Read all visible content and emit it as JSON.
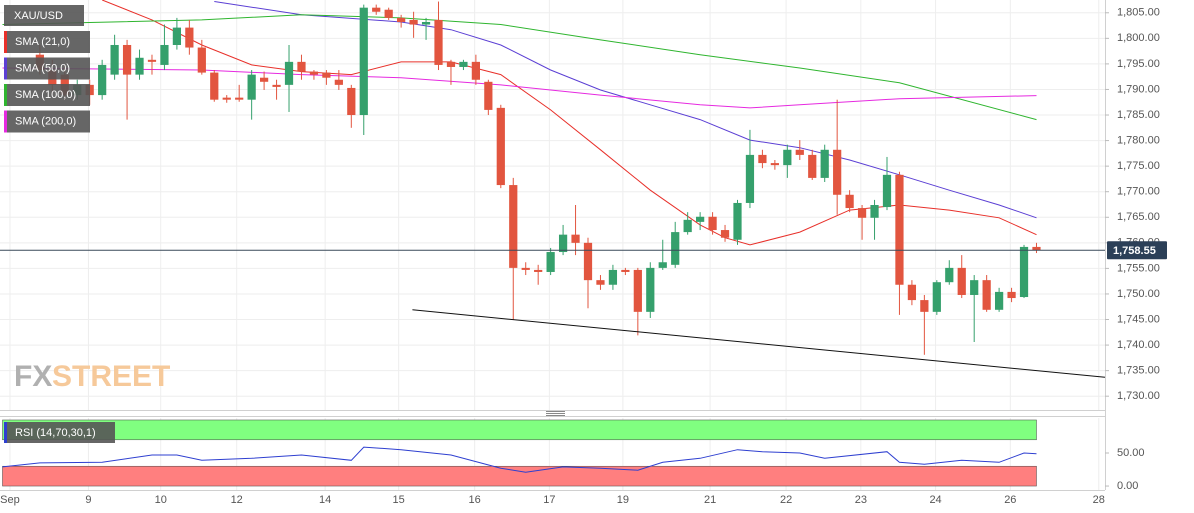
{
  "chart_data": [
    {
      "type": "candlestick",
      "symbol": "XAU/USD",
      "x": [
        3,
        4,
        5,
        6,
        7,
        8,
        9,
        10,
        11,
        12,
        13,
        14,
        15,
        16,
        17,
        18,
        19,
        20,
        21,
        22,
        23,
        24,
        25,
        26,
        27,
        28,
        29,
        30,
        31,
        32,
        33,
        34,
        35,
        36,
        37,
        38,
        39,
        40,
        41,
        42,
        43,
        44,
        45,
        46,
        47,
        48,
        49,
        50,
        51,
        52,
        53,
        54,
        55,
        56,
        57,
        58,
        59,
        60,
        61,
        62,
        63,
        64,
        65,
        66,
        67,
        68,
        69,
        70,
        71,
        72,
        73,
        74,
        75,
        76,
        77,
        78,
        79,
        80,
        81,
        82,
        83
      ],
      "open": [
        1796.8,
        1793.8,
        1792.9,
        1788.9,
        1790.9,
        1788.9,
        1792.9,
        1798.7,
        1792.9,
        1795.8,
        1794.8,
        1798.7,
        1802.1,
        1798.2,
        1793.3,
        1788.4,
        1788.4,
        1788.0,
        1792.3,
        1790.9,
        1790.9,
        1795.4,
        1793.5,
        1793.3,
        1791.9,
        1790.3,
        1785.0,
        1806.0,
        1805.6,
        1804.0,
        1803.6,
        1802.7,
        1803.6,
        1795.4,
        1794.4,
        1795.4,
        1791.5,
        1786.4,
        1771.3,
        1755.1,
        1754.7,
        1754.3,
        1758.2,
        1761.6,
        1760.0,
        1752.7,
        1751.8,
        1754.7,
        1754.7,
        1746.5,
        1755.1,
        1755.7,
        1762.1,
        1764.1,
        1765.1,
        1762.5,
        1760.6,
        1767.8,
        1777.2,
        1775.6,
        1775.2,
        1778.2,
        1777.2,
        1772.7,
        1778.2,
        1769.4,
        1766.8,
        1764.9,
        1767.0,
        1773.3,
        1751.8,
        1748.8,
        1746.5,
        1752.3,
        1755.1,
        1749.8,
        1752.7,
        1746.9,
        1750.4,
        1749.4,
        1759.2
      ],
      "high": [
        1798.7,
        1795.8,
        1794.8,
        1791.9,
        1791.9,
        1795.8,
        1800.7,
        1799.7,
        1797.8,
        1796.8,
        1802.7,
        1804.0,
        1803.6,
        1799.7,
        1793.8,
        1788.9,
        1790.9,
        1793.8,
        1793.5,
        1791.9,
        1798.7,
        1796.8,
        1793.8,
        1793.8,
        1793.8,
        1790.9,
        1806.6,
        1806.6,
        1806.0,
        1804.6,
        1805.2,
        1804.0,
        1807.2,
        1795.8,
        1795.8,
        1796.8,
        1791.9,
        1787.0,
        1772.7,
        1756.2,
        1755.7,
        1759.0,
        1763.5,
        1767.4,
        1761.0,
        1753.7,
        1755.7,
        1755.1,
        1755.1,
        1756.2,
        1760.6,
        1764.1,
        1766.0,
        1766.0,
        1766.0,
        1763.5,
        1768.4,
        1782.1,
        1778.2,
        1776.2,
        1779.2,
        1780.1,
        1778.2,
        1779.2,
        1788.0,
        1770.3,
        1767.4,
        1768.4,
        1776.8,
        1773.9,
        1752.7,
        1749.8,
        1752.7,
        1756.6,
        1757.6,
        1753.7,
        1753.7,
        1751.2,
        1751.2,
        1759.6,
        1760.0
      ],
      "low": [
        1792.9,
        1788.9,
        1788.0,
        1788.0,
        1787.0,
        1788.0,
        1791.9,
        1784.1,
        1791.9,
        1792.9,
        1793.8,
        1797.8,
        1796.8,
        1792.9,
        1787.6,
        1787.4,
        1787.6,
        1784.1,
        1789.9,
        1788.0,
        1785.6,
        1791.9,
        1791.9,
        1790.9,
        1789.9,
        1782.5,
        1781.1,
        1804.6,
        1803.6,
        1802.1,
        1800.1,
        1799.7,
        1793.8,
        1790.9,
        1793.8,
        1790.9,
        1785.0,
        1770.7,
        1744.9,
        1753.7,
        1751.8,
        1753.7,
        1757.6,
        1757.6,
        1747.2,
        1750.8,
        1750.8,
        1753.7,
        1741.9,
        1745.3,
        1754.7,
        1755.1,
        1761.6,
        1762.5,
        1761.6,
        1760.2,
        1759.6,
        1766.8,
        1774.6,
        1774.3,
        1772.7,
        1776.2,
        1772.3,
        1771.9,
        1765.5,
        1766.0,
        1760.6,
        1760.6,
        1766.4,
        1745.9,
        1747.8,
        1738.1,
        1745.9,
        1751.8,
        1749.2,
        1740.6,
        1746.5,
        1746.5,
        1748.4,
        1749.2,
        1758.0
      ],
      "close": [
        1793.8,
        1790.9,
        1788.9,
        1790.9,
        1788.9,
        1794.8,
        1798.7,
        1792.9,
        1796.2,
        1795.4,
        1798.7,
        1802.1,
        1798.2,
        1793.3,
        1788.0,
        1788.0,
        1788.0,
        1792.9,
        1791.5,
        1790.5,
        1795.4,
        1793.5,
        1792.9,
        1792.3,
        1790.9,
        1785.0,
        1806.0,
        1805.2,
        1804.0,
        1803.2,
        1802.7,
        1803.2,
        1794.8,
        1794.4,
        1795.4,
        1791.9,
        1786.0,
        1771.3,
        1755.1,
        1754.7,
        1754.3,
        1758.2,
        1761.6,
        1760.0,
        1752.7,
        1751.8,
        1754.7,
        1754.3,
        1746.5,
        1755.1,
        1756.2,
        1762.1,
        1764.5,
        1765.1,
        1762.5,
        1761.0,
        1767.8,
        1777.2,
        1775.6,
        1775.2,
        1778.2,
        1777.2,
        1772.7,
        1778.2,
        1769.4,
        1766.8,
        1764.9,
        1767.4,
        1773.3,
        1751.8,
        1748.8,
        1746.5,
        1752.3,
        1755.1,
        1749.8,
        1752.7,
        1746.9,
        1750.4,
        1749.2,
        1759.2,
        1758.6
      ],
      "up_color": "#35a06c",
      "down_color": "#e2553f",
      "overlays": [
        {
          "name": "SMA (21,0)",
          "color": "#e8302a",
          "x": [
            8,
            12,
            16,
            20,
            24,
            28,
            32,
            36,
            40,
            44,
            48,
            52,
            56,
            58,
            60,
            64,
            68,
            72,
            76,
            80,
            83
          ],
          "values": [
            1807.5,
            1803.6,
            1798.7,
            1794.8,
            1793.5,
            1792.9,
            1795.4,
            1795.4,
            1792.9,
            1786.0,
            1778.2,
            1770.3,
            1763.5,
            1761.0,
            1759.6,
            1762.1,
            1766.4,
            1767.4,
            1766.4,
            1764.9,
            1761.6
          ]
        },
        {
          "name": "SMA (50,0)",
          "color": "#5b3fd4",
          "x": [
            17,
            24,
            32,
            36,
            40,
            44,
            48,
            52,
            56,
            60,
            64,
            68,
            72,
            76,
            80,
            83
          ],
          "values": [
            1807.2,
            1804.6,
            1803.2,
            1801.7,
            1798.7,
            1793.8,
            1789.9,
            1787.0,
            1784.1,
            1780.1,
            1778.6,
            1776.2,
            1773.3,
            1770.3,
            1767.4,
            1764.9
          ]
        },
        {
          "name": "SMA (100,0)",
          "color": "#2fb52f",
          "x": [
            0,
            16,
            24,
            32,
            40,
            48,
            56,
            64,
            72,
            83
          ],
          "values": [
            1802.7,
            1803.6,
            1804.6,
            1804.0,
            1802.7,
            1799.7,
            1796.8,
            1794.2,
            1791.3,
            1784.1
          ]
        },
        {
          "name": "SMA (200,0)",
          "color": "#e62ae0",
          "x": [
            0,
            16,
            24,
            32,
            40,
            48,
            56,
            60,
            64,
            72,
            83
          ],
          "values": [
            1794.2,
            1793.8,
            1792.9,
            1792.3,
            1790.9,
            1788.9,
            1787.0,
            1786.4,
            1787.0,
            1788.2,
            1788.8
          ]
        }
      ],
      "trendline": {
        "x": [
          32.9,
          88.5
        ],
        "values": [
          1746.9,
          1733.7
        ],
        "color": "#111111"
      },
      "last_price": {
        "value": 1758.55,
        "label": "1,758.55"
      },
      "xlim": [
        -0.2,
        88.5
      ],
      "ylim": [
        1727.3,
        1807.5
      ],
      "xticks": [
        {
          "value": 0.6,
          "label": "Sep"
        },
        {
          "value": 6.9,
          "label": "9"
        },
        {
          "value": 12.7,
          "label": "10"
        },
        {
          "value": 18.8,
          "label": "12"
        },
        {
          "value": 25.9,
          "label": "14"
        },
        {
          "value": 31.8,
          "label": "15"
        },
        {
          "value": 37.9,
          "label": "16"
        },
        {
          "value": 43.9,
          "label": "17"
        },
        {
          "value": 49.8,
          "label": "19"
        },
        {
          "value": 56.8,
          "label": "21"
        },
        {
          "value": 62.9,
          "label": "22"
        },
        {
          "value": 68.9,
          "label": "23"
        },
        {
          "value": 74.9,
          "label": "24"
        },
        {
          "value": 80.9,
          "label": "26"
        },
        {
          "value": 88.0,
          "label": "28"
        }
      ],
      "yticks": [
        {
          "value": 1730,
          "label": "1,730.00"
        },
        {
          "value": 1735,
          "label": "1,735.00"
        },
        {
          "value": 1740,
          "label": "1,740.00"
        },
        {
          "value": 1745,
          "label": "1,745.00"
        },
        {
          "value": 1750,
          "label": "1,750.00"
        },
        {
          "value": 1755,
          "label": "1,755.00"
        },
        {
          "value": 1760,
          "label": "1,760.00"
        },
        {
          "value": 1765,
          "label": "1,765.00"
        },
        {
          "value": 1770,
          "label": "1,770.00"
        },
        {
          "value": 1775,
          "label": "1,775.00"
        },
        {
          "value": 1780,
          "label": "1,780.00"
        },
        {
          "value": 1785,
          "label": "1,785.00"
        },
        {
          "value": 1790,
          "label": "1,790.00"
        },
        {
          "value": 1795,
          "label": "1,795.00"
        },
        {
          "value": 1800,
          "label": "1,800.00"
        },
        {
          "value": 1805,
          "label": "1,805.00"
        }
      ],
      "grid": true,
      "watermark": [
        "FX",
        "STREET"
      ]
    },
    {
      "type": "line",
      "name": "RSI (14,70,30,1)",
      "color": "#2e3fd0",
      "x": [
        0,
        3,
        8,
        12,
        14,
        16,
        20,
        24,
        28,
        29,
        32,
        36,
        40,
        42,
        45,
        48,
        51,
        53,
        56,
        59,
        61,
        64,
        66,
        71,
        72,
        74,
        77,
        80,
        82,
        83
      ],
      "values": [
        29,
        35,
        36,
        47,
        47,
        39,
        42,
        47,
        39,
        59,
        55,
        47,
        27,
        21,
        29,
        27,
        24,
        36,
        42,
        55,
        52,
        50,
        42,
        52,
        36,
        33,
        39,
        36,
        50,
        49
      ],
      "bands": [
        {
          "from": 70,
          "to": 100,
          "color": "#80ff80"
        },
        {
          "from": 0,
          "to": 30,
          "color": "#ff7f7f"
        }
      ],
      "ylim": [
        -6,
        103
      ],
      "yticks": [
        {
          "value": 50,
          "label": "50.00"
        },
        {
          "value": 0,
          "label": "0.00"
        }
      ]
    }
  ]
}
